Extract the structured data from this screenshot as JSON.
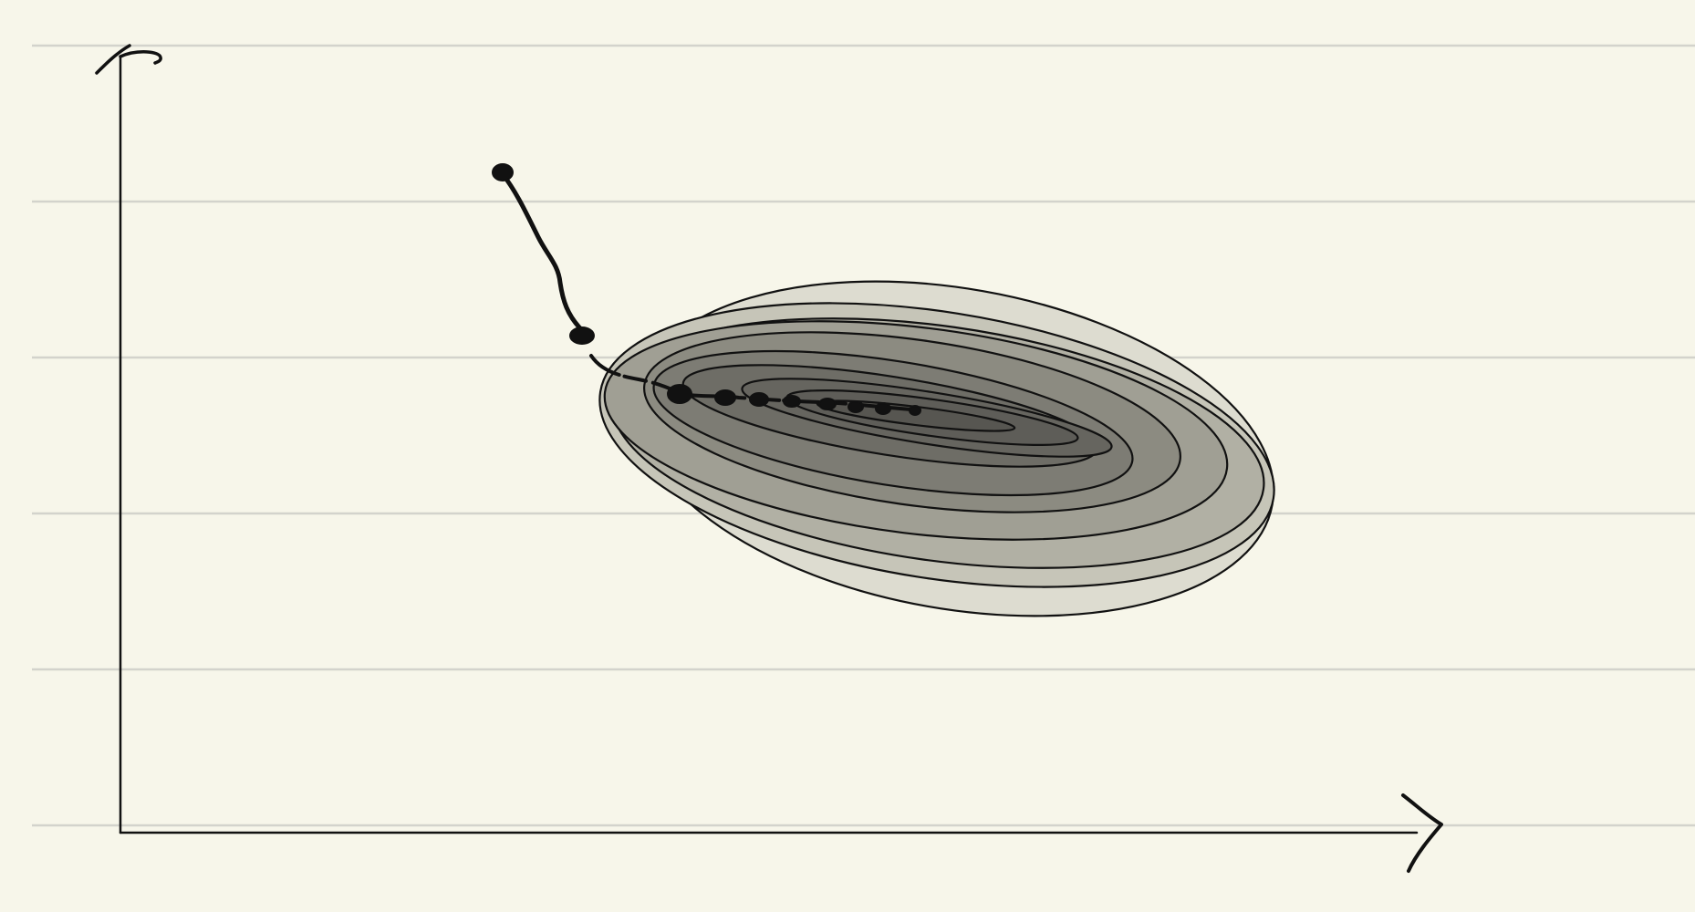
{
  "diagram": {
    "kind": "contour plot with optimization path (hand-drawn sketch)",
    "title": "",
    "xlabel": "",
    "ylabel": "",
    "contour_level_count": 10,
    "path_point_count": 10,
    "colors": {
      "paper": "#f7f6ea",
      "ruled_lines": "#d3d3cc",
      "ink": "#111111",
      "contour_fills": [
        "#dddcd0",
        "#c6c5b8",
        "#b1b0a4",
        "#a09f94",
        "#8c8b81",
        "#7d7c74",
        "#6e6d66",
        "#66655f",
        "#5e5d58",
        "#575651"
      ]
    }
  }
}
